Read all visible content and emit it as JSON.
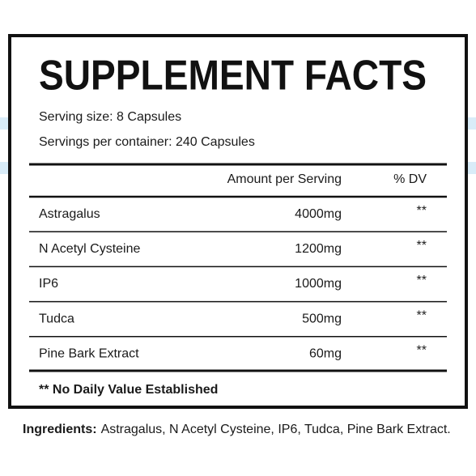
{
  "header": {
    "title": "SUPPLEMENT FACTS"
  },
  "serving": {
    "size": "Serving size: 8 Capsules",
    "per_container": "Servings per container: 240 Capsules"
  },
  "table": {
    "columns": [
      "Amount per Serving",
      "% DV"
    ],
    "rows": [
      [
        "Astragalus",
        "4000mg",
        "**"
      ],
      [
        "N Acetyl Cysteine",
        "1200mg",
        "**"
      ],
      [
        "IP6",
        "1000mg",
        "**"
      ],
      [
        "Tudca",
        "500mg",
        "**"
      ],
      [
        "Pine Bark Extract",
        "60mg",
        "**"
      ]
    ]
  },
  "footnote": "** No Daily Value Established",
  "ingredients": {
    "label": "Ingredients:",
    "text": "Astragalus, N Acetyl Cysteine, IP6, Tudca, Pine Bark Extract."
  }
}
